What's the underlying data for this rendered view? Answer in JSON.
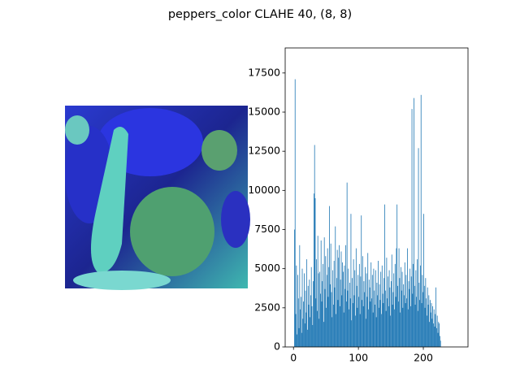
{
  "chart_data": {
    "type": "histogram",
    "title": "peppers_color CLAHE 40, (8, 8)",
    "color": "#1f77b4",
    "bins": [
      0,
      1,
      2,
      3,
      4,
      5,
      6,
      7,
      8,
      9,
      10,
      11,
      12,
      13,
      14,
      15,
      16,
      17,
      18,
      19,
      20,
      21,
      22,
      23,
      24,
      25,
      26,
      27,
      28,
      29,
      30,
      31,
      32,
      33,
      34,
      35,
      36,
      37,
      38,
      39,
      40,
      41,
      42,
      43,
      44,
      45,
      46,
      47,
      48,
      49,
      50,
      51,
      52,
      53,
      54,
      55,
      56,
      57,
      58,
      59,
      60,
      61,
      62,
      63,
      64,
      65,
      66,
      67,
      68,
      69,
      70,
      71,
      72,
      73,
      74,
      75,
      76,
      77,
      78,
      79,
      80,
      81,
      82,
      83,
      84,
      85,
      86,
      87,
      88,
      89,
      90,
      91,
      92,
      93,
      94,
      95,
      96,
      97,
      98,
      99,
      100,
      101,
      102,
      103,
      104,
      105,
      106,
      107,
      108,
      109,
      110,
      111,
      112,
      113,
      114,
      115,
      116,
      117,
      118,
      119,
      120,
      121,
      122,
      123,
      124,
      125,
      126,
      127,
      128,
      129,
      130,
      131,
      132,
      133,
      134,
      135,
      136,
      137,
      138,
      139,
      140,
      141,
      142,
      143,
      144,
      145,
      146,
      147,
      148,
      149,
      150,
      151,
      152,
      153,
      154,
      155,
      156,
      157,
      158,
      159,
      160,
      161,
      162,
      163,
      164,
      165,
      166,
      167,
      168,
      169,
      170,
      171,
      172,
      173,
      174,
      175,
      176,
      177,
      178,
      179,
      180,
      181,
      182,
      183,
      184,
      185,
      186,
      187,
      188,
      189,
      190,
      191,
      192,
      193,
      194,
      195,
      196,
      197,
      198,
      199,
      200,
      201,
      202,
      203,
      204,
      205,
      206,
      207,
      208,
      209,
      210,
      211,
      212,
      213,
      214,
      215,
      216,
      217,
      218,
      219,
      220,
      221,
      222,
      223,
      224,
      225,
      226,
      227,
      228,
      229,
      230,
      231,
      232,
      233,
      234,
      235,
      236,
      237,
      238,
      239,
      240,
      241,
      242,
      243,
      244,
      245,
      246,
      247,
      248,
      249,
      250,
      251,
      252,
      253,
      254,
      255,
      256
    ],
    "values": [
      0,
      7500,
      17100,
      2100,
      5200,
      800,
      4600,
      3100,
      1200,
      6500,
      2400,
      3200,
      900,
      5000,
      1800,
      2900,
      4700,
      1500,
      3600,
      2200,
      5600,
      1100,
      3900,
      2700,
      4300,
      1900,
      3300,
      5100,
      2600,
      1400,
      4200,
      9800,
      12900,
      9500,
      3100,
      5600,
      2300,
      7100,
      4700,
      1800,
      4800,
      3400,
      6800,
      2900,
      4200,
      5300,
      1600,
      7000,
      3700,
      5800,
      2500,
      4600,
      6300,
      3200,
      5100,
      9000,
      4000,
      6600,
      3500,
      1900,
      4900,
      2700,
      5500,
      3800,
      7700,
      2100,
      4400,
      6200,
      3000,
      5700,
      6500,
      2600,
      4300,
      6100,
      3300,
      5400,
      4800,
      2200,
      5200,
      3700,
      6500,
      2900,
      10500,
      3600,
      5000,
      2400,
      4100,
      3100,
      8500,
      1700,
      4400,
      2800,
      5600,
      3300,
      4900,
      2000,
      6300,
      3900,
      2500,
      4600,
      3200,
      5300,
      2100,
      4500,
      8400,
      3000,
      5800,
      2600,
      4200,
      3500,
      5100,
      1800,
      4700,
      3200,
      6000,
      2400,
      4300,
      3800,
      2900,
      5400,
      3100,
      4600,
      2200,
      5000,
      3600,
      2700,
      4900,
      1900,
      4100,
      3300,
      5500,
      2500,
      4000,
      3000,
      4800,
      2100,
      5200,
      3400,
      2800,
      4400,
      9100,
      3600,
      2300,
      5700,
      3100,
      4500,
      2600,
      4900,
      3800,
      2000,
      4200,
      5900,
      2700,
      3500,
      4700,
      2400,
      5300,
      3200,
      6300,
      9100,
      3900,
      2900,
      6300,
      4400,
      2200,
      5100,
      3600,
      4800,
      2500,
      4000,
      3300,
      5400,
      2800,
      4600,
      3100,
      6300,
      2400,
      4200,
      3700,
      5000,
      2600,
      4500,
      15200,
      3400,
      5300,
      15900,
      3900,
      2700,
      4900,
      3200,
      5600,
      2300,
      12700,
      4100,
      3000,
      5200,
      16100,
      2800,
      4600,
      3500,
      8500,
      3900,
      2500,
      4400,
      3100,
      2000,
      3800,
      2700,
      3300,
      1600,
      3000,
      2200,
      2800,
      1800,
      2600,
      1500,
      2400,
      1300,
      2100,
      3800,
      1200,
      2000,
      900,
      1600,
      1500,
      700,
      400,
      0,
      0,
      0,
      0,
      0,
      0,
      0,
      0,
      0,
      0,
      0,
      0,
      0,
      0,
      0,
      0,
      0,
      0,
      0,
      0,
      0,
      0,
      0,
      0,
      0,
      0,
      0,
      0,
      0
    ],
    "xlim": [
      -12.8,
      268.8
    ],
    "ylim": [
      0,
      19100
    ],
    "xticks": [
      0,
      100,
      200
    ],
    "yticks": [
      0,
      2500,
      5000,
      7500,
      10000,
      12500,
      15000,
      17500
    ]
  }
}
